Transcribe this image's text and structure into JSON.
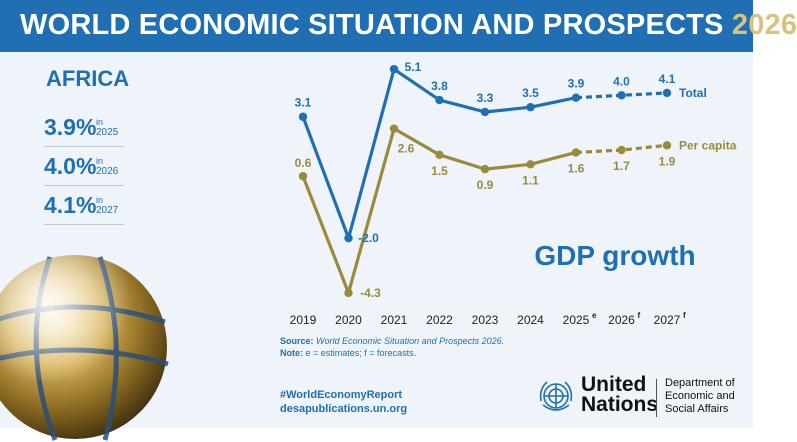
{
  "banner": {
    "title": "WORLD ECONOMIC SITUATION AND PROSPECTS",
    "year": "2026"
  },
  "left_panel": {
    "region": "AFRICA",
    "stats": [
      {
        "value": "3.9%",
        "in": "in",
        "year": "2025"
      },
      {
        "value": "4.0%",
        "in": "in",
        "year": "2026"
      },
      {
        "value": "4.1%",
        "in": "in",
        "year": "2027"
      }
    ]
  },
  "chart_data": {
    "type": "line",
    "title": "GDP growth",
    "categories": [
      "2019",
      "2020",
      "2021",
      "2022",
      "2023",
      "2024",
      "2025",
      "2026",
      "2027"
    ],
    "category_superscripts": [
      "",
      "",
      "",
      "",
      "",
      "",
      "e",
      "f",
      "f"
    ],
    "series": [
      {
        "name": "Total",
        "color": "#1f6fb2",
        "values": [
          3.1,
          -2.0,
          5.1,
          3.8,
          3.3,
          3.5,
          3.9,
          4.0,
          4.1
        ],
        "labels": [
          "3.1",
          "-2.0",
          "5.1",
          "3.8",
          "3.3",
          "3.5",
          "3.9",
          "4.0",
          "4.1"
        ],
        "forecast_from_index": 6
      },
      {
        "name": "Per capita",
        "color": "#9a8a3a",
        "values": [
          0.6,
          -4.3,
          2.6,
          1.5,
          0.9,
          1.1,
          1.6,
          1.7,
          1.9
        ],
        "labels": [
          "0.6",
          "-4.3",
          "2.6",
          "1.5",
          "0.9",
          "1.1",
          "1.6",
          "1.7",
          "1.9"
        ],
        "forecast_from_index": 6
      }
    ],
    "ylim": [
      -4.6,
      5.4
    ],
    "grid": false,
    "legend": "inline-right"
  },
  "source": {
    "label": "Source:",
    "text": "World Economic Situation and Prospects 2026.",
    "note_label": "Note:",
    "note": "e = estimates; f = forecasts."
  },
  "footer": {
    "hashtag": "#WorldEconomyReport",
    "url": "desapublications.un.org"
  },
  "un": {
    "line1": "United",
    "line2": "Nations",
    "dept1": "Department of",
    "dept2": "Economic and",
    "dept3": "Social Affairs"
  },
  "colors": {
    "brand_blue": "#1f6fb2",
    "gold": "#9a8a3a",
    "background": "#eef4f9"
  }
}
